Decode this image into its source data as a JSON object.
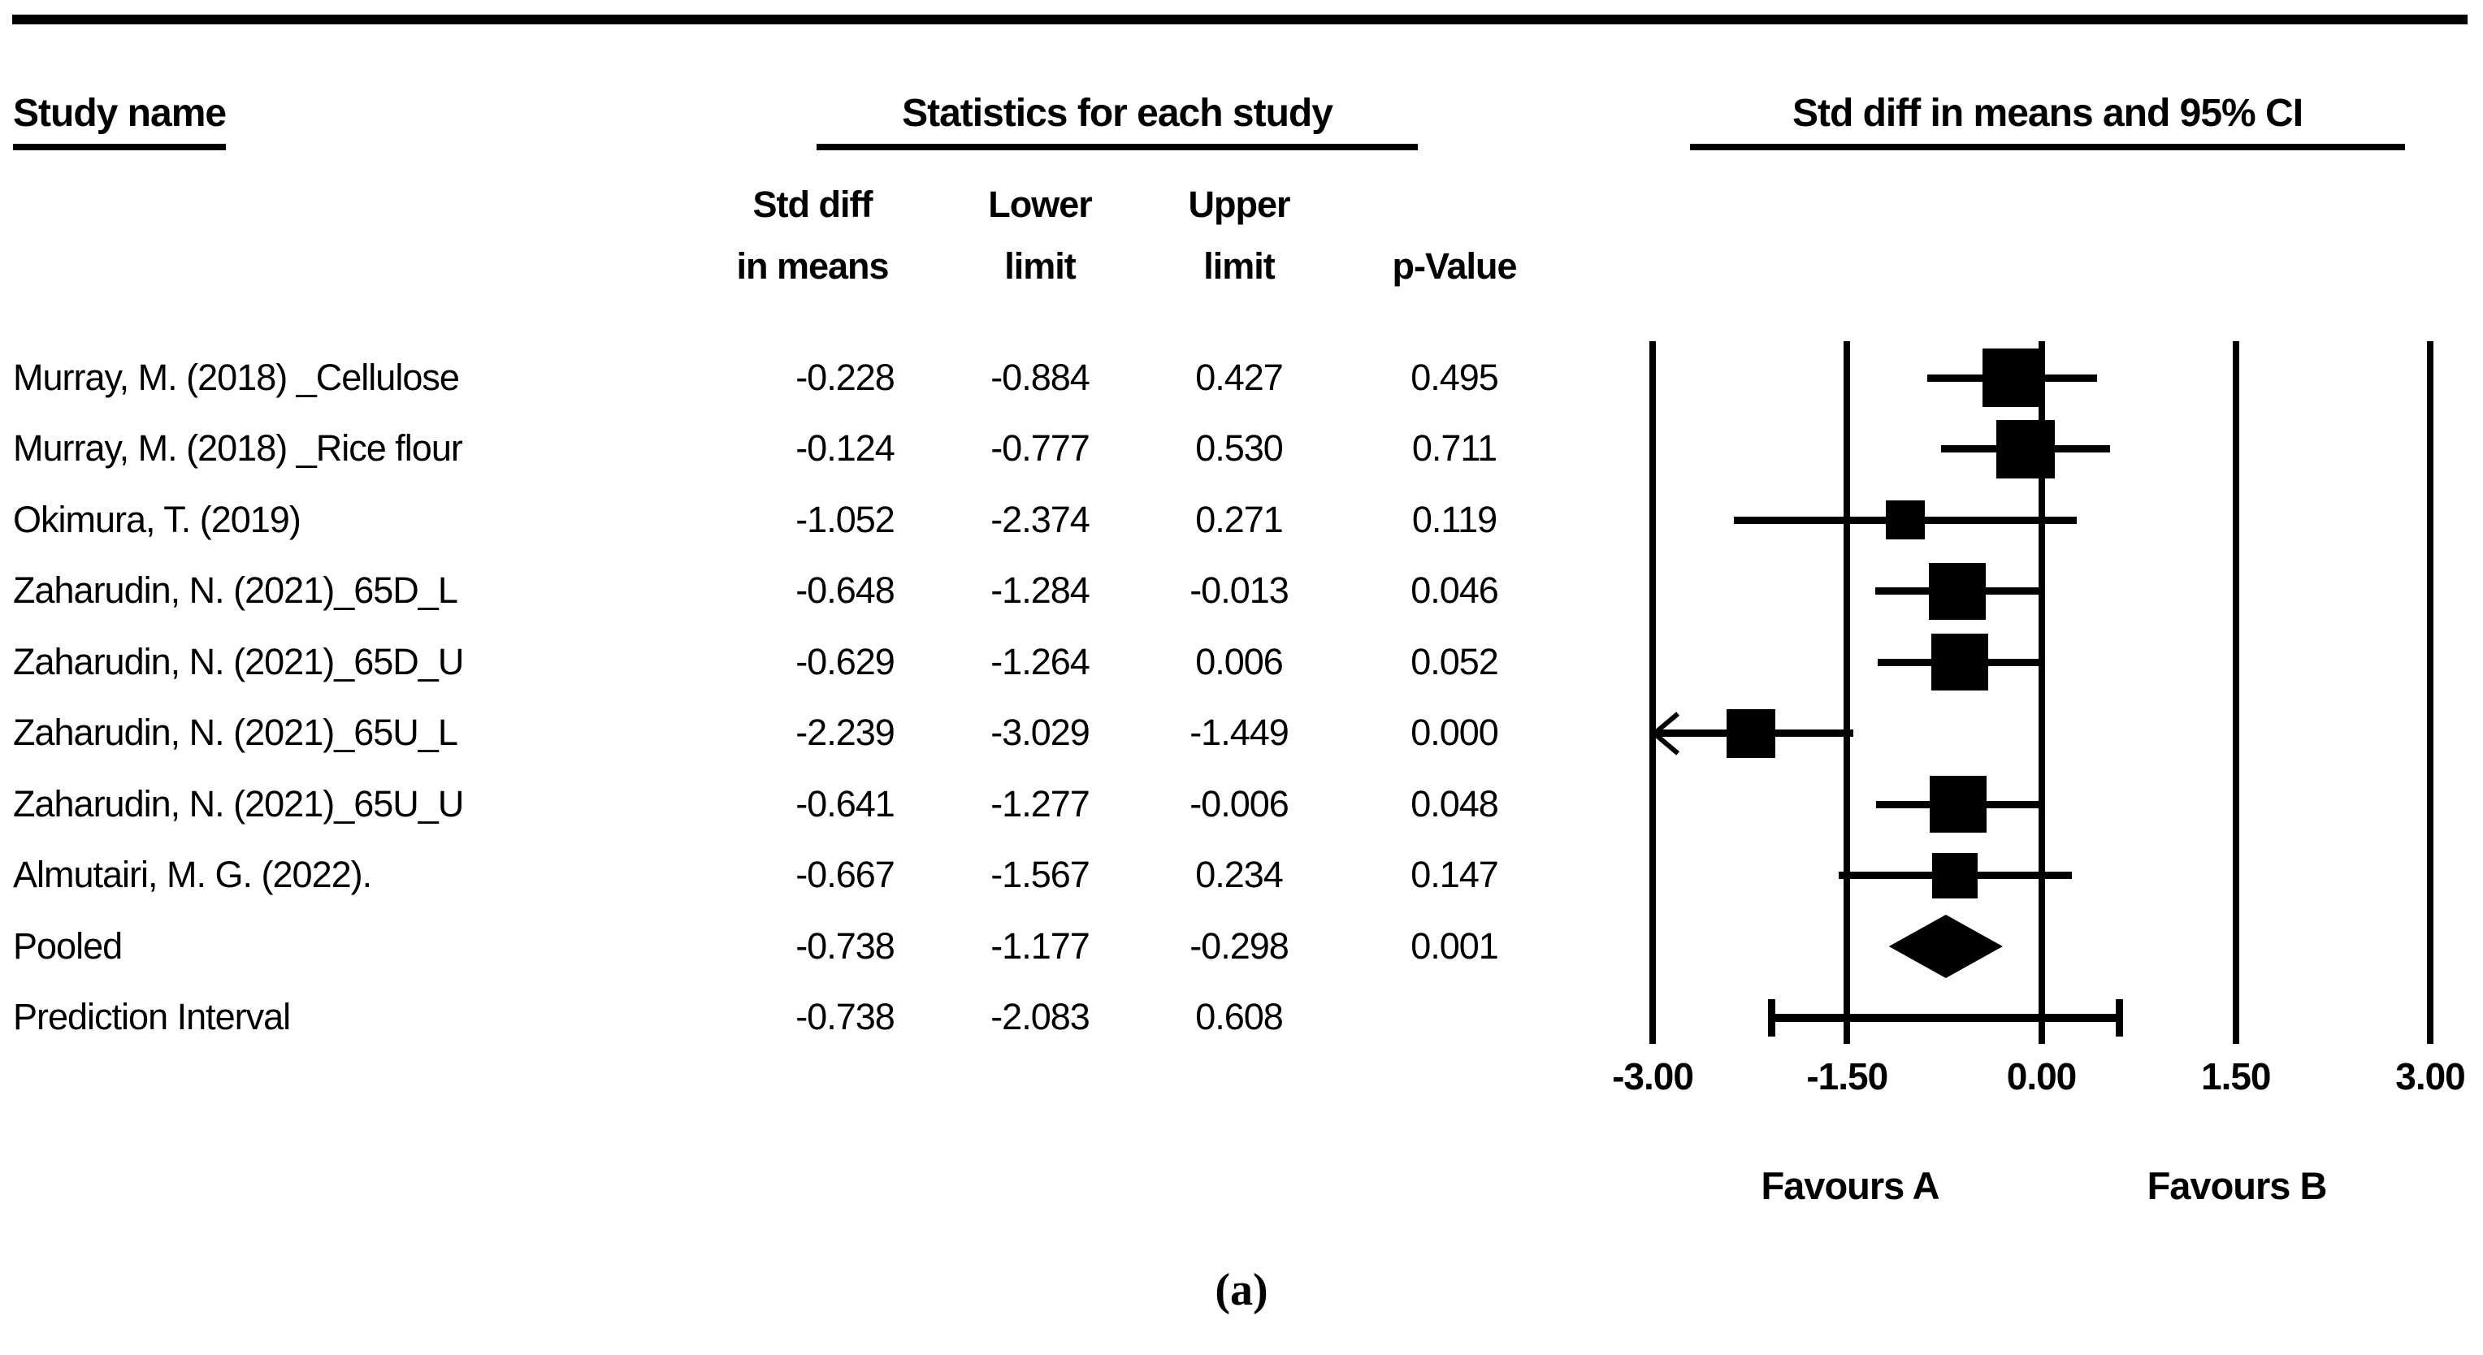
{
  "colors": {
    "ink": "#000000",
    "background": "#ffffff"
  },
  "headers": {
    "study_name": "Study name",
    "statistics": "Statistics for each study",
    "plot": "Std diff in means and 95% CI",
    "col_std_diff_line1": "Std diff",
    "col_std_diff_line2": "in means",
    "col_lower_line1": "Lower",
    "col_lower_line2": "limit",
    "col_upper_line1": "Upper",
    "col_upper_line2": "limit",
    "col_p_line2": "p-Value"
  },
  "caption": {
    "label": "(a)"
  },
  "chart_data": {
    "type": "forest",
    "title": "Std diff in means and 95% CI",
    "x_axis": {
      "min": -3.0,
      "max": 3.0,
      "ticks": [
        {
          "value": -3.0,
          "label": "-3.00"
        },
        {
          "value": -1.5,
          "label": "-1.50"
        },
        {
          "value": 0.0,
          "label": "0.00"
        },
        {
          "value": 1.5,
          "label": "1.50"
        },
        {
          "value": 3.0,
          "label": "3.00"
        }
      ]
    },
    "favours_left": "Favours A",
    "favours_right": "Favours B",
    "studies": [
      {
        "name": "Murray, M. (2018) _Cellulose",
        "est_label": "-0.228",
        "lower_label": "-0.884",
        "upper_label": "0.427",
        "p_label": "0.495",
        "est": -0.228,
        "lower": -0.884,
        "upper": 0.427,
        "marker": "square",
        "size": 72,
        "arrow_left": false
      },
      {
        "name": "Murray, M. (2018) _Rice flour",
        "est_label": "-0.124",
        "lower_label": "-0.777",
        "upper_label": "0.530",
        "p_label": "0.711",
        "est": -0.124,
        "lower": -0.777,
        "upper": 0.53,
        "marker": "square",
        "size": 72,
        "arrow_left": false
      },
      {
        "name": "Okimura, T. (2019)",
        "est_label": "-1.052",
        "lower_label": "-2.374",
        "upper_label": "0.271",
        "p_label": "0.119",
        "est": -1.052,
        "lower": -2.374,
        "upper": 0.271,
        "marker": "square",
        "size": 48,
        "arrow_left": false
      },
      {
        "name": "Zaharudin, N. (2021)_65D_L",
        "est_label": "-0.648",
        "lower_label": "-1.284",
        "upper_label": "-0.013",
        "p_label": "0.046",
        "est": -0.648,
        "lower": -1.284,
        "upper": -0.013,
        "marker": "square",
        "size": 70,
        "arrow_left": false
      },
      {
        "name": "Zaharudin, N. (2021)_65D_U",
        "est_label": "-0.629",
        "lower_label": "-1.264",
        "upper_label": "0.006",
        "p_label": "0.052",
        "est": -0.629,
        "lower": -1.264,
        "upper": 0.006,
        "marker": "square",
        "size": 70,
        "arrow_left": false
      },
      {
        "name": "Zaharudin, N. (2021)_65U_L",
        "est_label": "-2.239",
        "lower_label": "-3.029",
        "upper_label": "-1.449",
        "p_label": "0.000",
        "est": -2.239,
        "lower": -3.029,
        "upper": -1.449,
        "marker": "square",
        "size": 60,
        "arrow_left": true
      },
      {
        "name": "Zaharudin, N. (2021)_65U_U",
        "est_label": "-0.641",
        "lower_label": "-1.277",
        "upper_label": "-0.006",
        "p_label": "0.048",
        "est": -0.641,
        "lower": -1.277,
        "upper": -0.006,
        "marker": "square",
        "size": 70,
        "arrow_left": false
      },
      {
        "name": "Almutairi, M. G. (2022).",
        "est_label": "-0.667",
        "lower_label": "-1.567",
        "upper_label": "0.234",
        "p_label": "0.147",
        "est": -0.667,
        "lower": -1.567,
        "upper": 0.234,
        "marker": "square",
        "size": 56,
        "arrow_left": false
      },
      {
        "name": "Pooled",
        "est_label": "-0.738",
        "lower_label": "-1.177",
        "upper_label": "-0.298",
        "p_label": "0.001",
        "est": -0.738,
        "lower": -1.177,
        "upper": -0.298,
        "marker": "diamond",
        "size": 78,
        "arrow_left": false
      },
      {
        "name": "Prediction Interval",
        "est_label": "-0.738",
        "lower_label": "-2.083",
        "upper_label": "0.608",
        "p_label": "",
        "est": -0.738,
        "lower": -2.083,
        "upper": 0.608,
        "marker": "interval",
        "size": 46,
        "arrow_left": false
      }
    ]
  }
}
